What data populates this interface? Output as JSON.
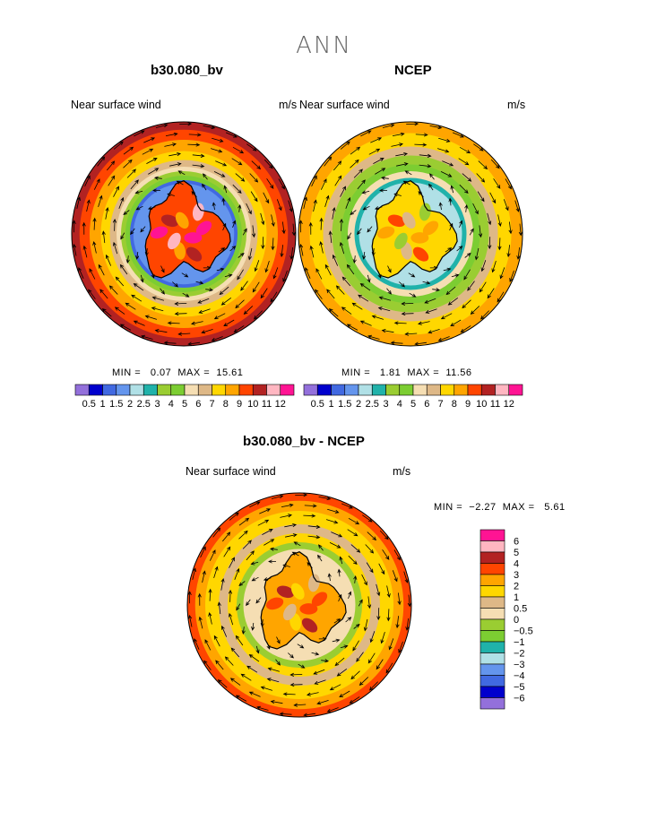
{
  "title": "ANN",
  "panels": [
    {
      "id": "model",
      "title": "b30.080_bv",
      "label_left": "Near surface wind",
      "label_right": "m/s",
      "min_label": "MIN =",
      "min": "0.07",
      "max_label": "MAX =",
      "max": "15.61"
    },
    {
      "id": "obs",
      "title": "NCEP",
      "label_left": "Near surface wind",
      "label_right": "m/s",
      "min_label": "MIN =",
      "min": "1.81",
      "max_label": "MAX =",
      "max": "11.56"
    },
    {
      "id": "diff",
      "title": "b30.080_bv - NCEP",
      "label_left": "Near surface wind",
      "label_right": "m/s",
      "min_label": "MIN =",
      "min": "−2.27",
      "max_label": "MAX =",
      "max": "5.61"
    }
  ],
  "colorbar_abs": {
    "colors": [
      "#9370db",
      "#0000cd",
      "#4169e1",
      "#6495ed",
      "#b0e0e6",
      "#20b2aa",
      "#9acd32",
      "#7ccd32",
      "#f5deb3",
      "#deb887",
      "#ffd700",
      "#ffa500",
      "#ff4500",
      "#b22222",
      "#ffb6c1",
      "#ff1493"
    ],
    "labels": [
      "0.5",
      "1",
      "1.5",
      "2",
      "2.5",
      "3",
      "4",
      "5",
      "6",
      "7",
      "8",
      "9",
      "10",
      "11",
      "12"
    ]
  },
  "colorbar_diff": {
    "colors": [
      "#ff1493",
      "#ffb6c1",
      "#b22222",
      "#ff4500",
      "#ffa500",
      "#ffd700",
      "#deb887",
      "#f5deb3",
      "#9acd32",
      "#7ccd32",
      "#20b2aa",
      "#b0e0e6",
      "#6495ed",
      "#4169e1",
      "#0000cd",
      "#9370db"
    ],
    "labels": [
      "6",
      "5",
      "4",
      "3",
      "2",
      "1",
      "0.5",
      "0",
      "−0.5",
      "−1",
      "−2",
      "−3",
      "−4",
      "−5",
      "−6"
    ]
  },
  "chart_data": [
    {
      "type": "heatmap",
      "title": "b30.080_bv",
      "subtitle": "Near surface wind",
      "units": "m/s",
      "min": 0.07,
      "max": 15.61,
      "levels": [
        0.5,
        1,
        1.5,
        2,
        2.5,
        3,
        4,
        5,
        6,
        7,
        8,
        9,
        10,
        11,
        12
      ]
    },
    {
      "type": "heatmap",
      "title": "NCEP",
      "subtitle": "Near surface wind",
      "units": "m/s",
      "min": 1.81,
      "max": 11.56,
      "levels": [
        0.5,
        1,
        1.5,
        2,
        2.5,
        3,
        4,
        5,
        6,
        7,
        8,
        9,
        10,
        11,
        12
      ]
    },
    {
      "type": "heatmap",
      "title": "b30.080_bv - NCEP",
      "subtitle": "Near surface wind",
      "units": "m/s",
      "min": -2.27,
      "max": 5.61,
      "levels": [
        -6,
        -5,
        -4,
        -3,
        -2,
        -1,
        -0.5,
        0,
        0.5,
        1,
        2,
        3,
        4,
        5,
        6
      ]
    }
  ]
}
